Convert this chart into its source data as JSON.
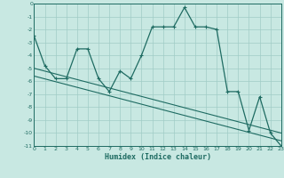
{
  "xlabel": "Humidex (Indice chaleur)",
  "bg_color": "#c8e8e2",
  "grid_color": "#a0ccc6",
  "line_color": "#1e6b62",
  "xlim": [
    0,
    23
  ],
  "ylim": [
    -11,
    0
  ],
  "xticks": [
    0,
    1,
    2,
    3,
    4,
    5,
    6,
    7,
    8,
    9,
    10,
    11,
    12,
    13,
    14,
    15,
    16,
    17,
    18,
    19,
    20,
    21,
    22,
    23
  ],
  "yticks": [
    0,
    -1,
    -2,
    -3,
    -4,
    -5,
    -6,
    -7,
    -8,
    -9,
    -10,
    -11
  ],
  "main_x": [
    0,
    1,
    2,
    3,
    4,
    5,
    6,
    7,
    8,
    9,
    10,
    11,
    12,
    13,
    14,
    15,
    16,
    17,
    18,
    19,
    20,
    21,
    22,
    23
  ],
  "main_y": [
    -2.5,
    -4.8,
    -5.8,
    -5.8,
    -3.5,
    -3.5,
    -5.8,
    -6.8,
    -5.2,
    -5.8,
    -4.0,
    -1.8,
    -1.8,
    -1.8,
    -0.3,
    -1.8,
    -1.8,
    -2.0,
    -6.8,
    -6.8,
    -9.8,
    -7.2,
    -10.0,
    -11.0
  ],
  "trend1_x": [
    0,
    23
  ],
  "trend1_y": [
    -5.0,
    -10.0
  ],
  "trend2_x": [
    0,
    23
  ],
  "trend2_y": [
    -5.6,
    -10.6
  ]
}
